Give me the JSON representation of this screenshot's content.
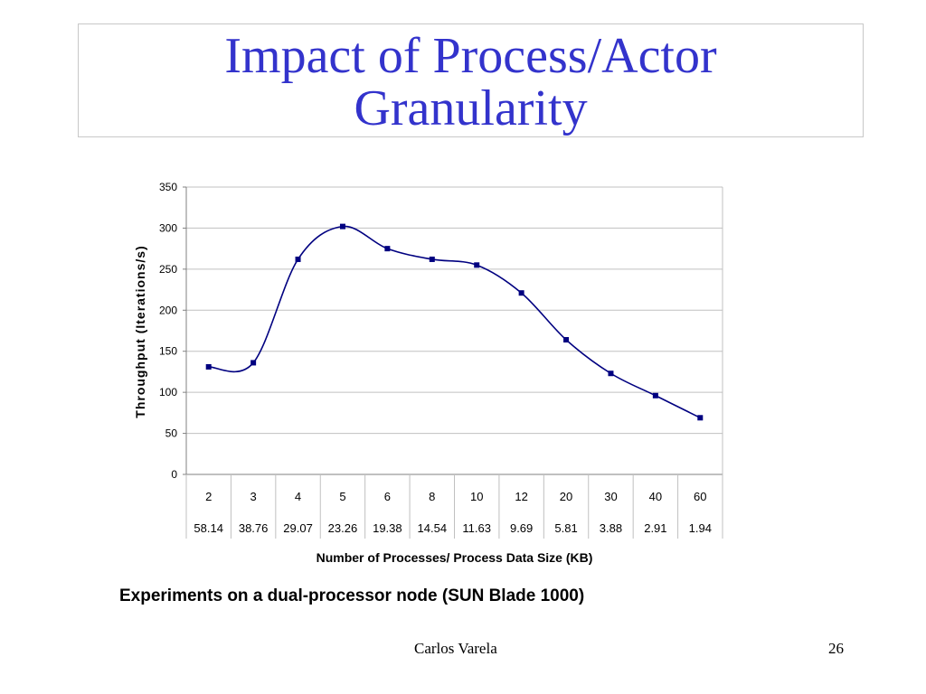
{
  "slide": {
    "title_line1": "Impact of Process/Actor",
    "title_line2": "Granularity",
    "caption": "Experiments on a dual-processor node (SUN Blade 1000)",
    "author": "Carlos Varela",
    "page_number": "26"
  },
  "colors": {
    "title": "#3333cc",
    "series": "#000080",
    "grid": "#c0c0c0"
  },
  "chart_data": {
    "type": "line",
    "smoothed": true,
    "title": "",
    "xlabel": "Number of Processes/ Process Data Size (KB)",
    "ylabel": "Throughput  (Iterations/s)",
    "ylim": [
      0,
      350
    ],
    "yticks": [
      0,
      50,
      100,
      150,
      200,
      250,
      300,
      350
    ],
    "grid": true,
    "categories": [
      "2",
      "3",
      "4",
      "5",
      "6",
      "8",
      "10",
      "12",
      "20",
      "30",
      "40",
      "60"
    ],
    "categories_row2": [
      "58.14",
      "38.76",
      "29.07",
      "23.26",
      "19.38",
      "14.54",
      "11.63",
      "9.69",
      "5.81",
      "3.88",
      "2.91",
      "1.94"
    ],
    "series": [
      {
        "name": "Throughput",
        "values": [
          131,
          136,
          262,
          302,
          275,
          262,
          255,
          221,
          164,
          123,
          96,
          69
        ]
      }
    ]
  }
}
